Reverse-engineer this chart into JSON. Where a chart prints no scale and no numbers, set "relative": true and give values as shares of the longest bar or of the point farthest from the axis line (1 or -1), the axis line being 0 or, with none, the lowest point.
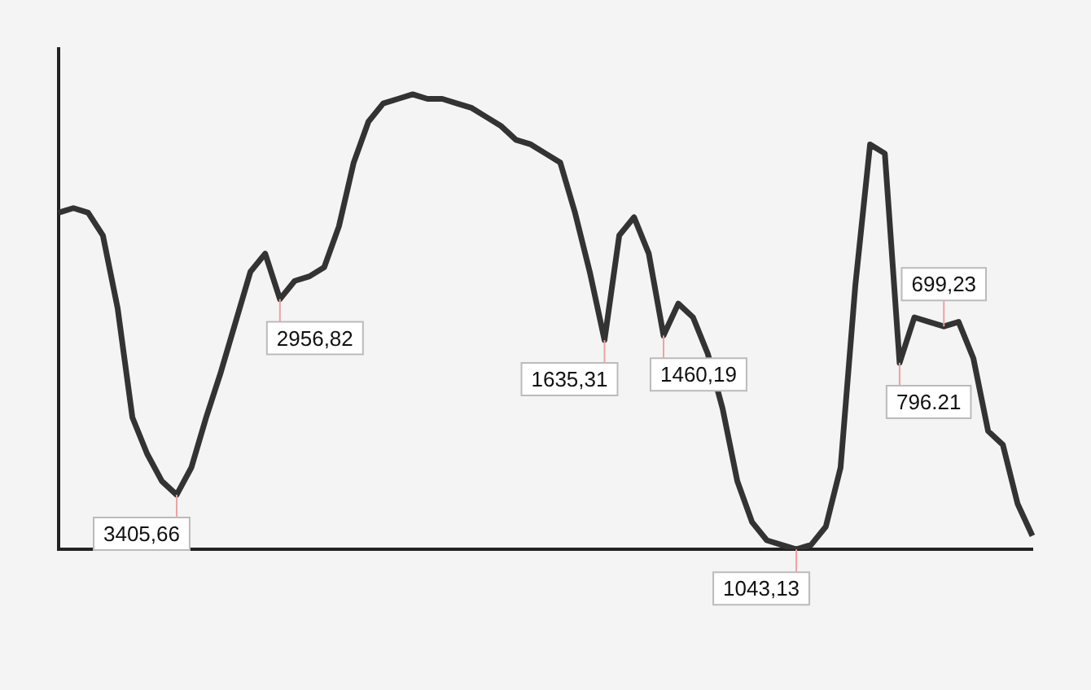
{
  "chart_data": {
    "type": "line",
    "relative": true,
    "color": "#333333",
    "grid": false,
    "legend": false,
    "marker": "none",
    "categories": [
      null,
      null,
      null,
      null,
      null,
      null,
      null,
      null,
      null,
      null,
      null,
      null,
      null,
      null,
      null,
      null,
      null,
      null,
      null,
      null,
      null,
      null,
      null,
      null,
      null,
      null,
      null,
      null,
      null,
      null,
      null,
      null,
      null,
      null,
      null,
      null,
      null,
      null,
      null,
      null,
      null,
      null,
      null,
      null,
      null,
      null,
      null,
      null,
      null,
      null,
      null,
      null,
      null,
      null,
      null,
      null,
      null,
      null,
      null,
      null,
      null,
      null,
      null,
      null,
      null,
      null,
      null
    ],
    "values": [
      0.74,
      0.75,
      0.74,
      0.69,
      0.53,
      0.29,
      0.21,
      0.15,
      0.12,
      0.18,
      0.29,
      0.39,
      0.5,
      0.61,
      0.65,
      0.55,
      0.59,
      0.6,
      0.62,
      0.71,
      0.85,
      0.94,
      0.98,
      0.99,
      1,
      0.99,
      0.99,
      0.98,
      0.97,
      0.95,
      0.93,
      0.9,
      0.89,
      0.87,
      0.85,
      0.74,
      0.61,
      0.46,
      0.69,
      0.73,
      0.65,
      0.47,
      0.54,
      0.51,
      0.43,
      0.31,
      0.15,
      0.06,
      0.02,
      0.01,
      0,
      0.01,
      0.05,
      0.18,
      0.58,
      0.89,
      0.87,
      0.41,
      0.51,
      0.5,
      0.49,
      0.5,
      0.42,
      0.26,
      0.23,
      0.1,
      0.03
    ],
    "annotations": [
      "3405,66",
      "2956,82",
      "1635,31",
      "1460,19",
      "1043,13",
      "796.21",
      "699,23"
    ]
  }
}
